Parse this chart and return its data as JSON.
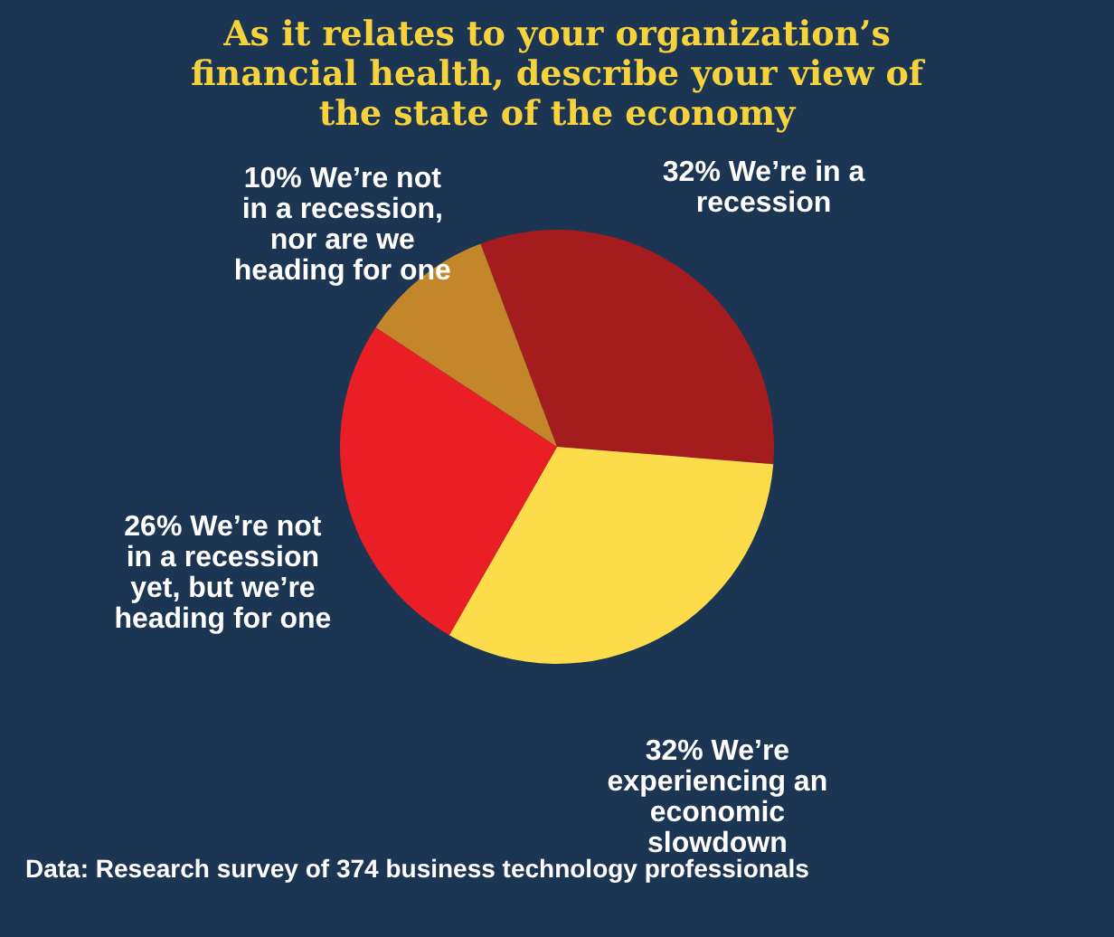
{
  "chart_data": {
    "type": "pie",
    "title": "As it relates to your organization’s financial health, describe your view of the state of the economy",
    "categories": [
      "We’re in a recession",
      "We’re experiencing an economic slowdown",
      "We’re not in a recession yet, but we’re heading for one",
      "We’re not in a recession, nor are we heading for one"
    ],
    "values": [
      32,
      32,
      26,
      10
    ],
    "value_labels": [
      "32%",
      "32%",
      "26%",
      "10%"
    ],
    "colors": [
      "#a51c1f",
      "#fddc4c",
      "#ea1f26",
      "#c4862b"
    ],
    "legend": false,
    "annotations": [
      "Data: Research survey of 374 business technology professionals"
    ]
  }
}
